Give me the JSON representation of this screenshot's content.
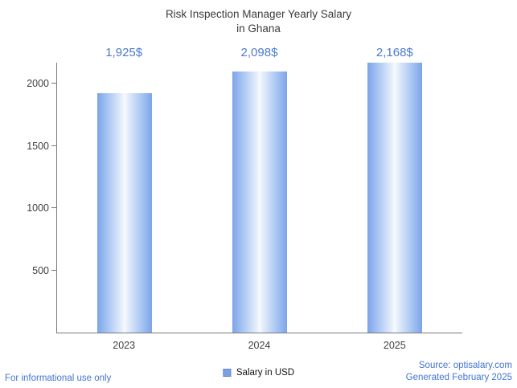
{
  "title": {
    "line1": "Risk Inspection Manager Yearly Salary",
    "line2": "in Ghana"
  },
  "chart_data": {
    "type": "bar",
    "title": "Risk Inspection Manager Yearly Salary in Ghana",
    "categories": [
      "2023",
      "2024",
      "2025"
    ],
    "values": [
      1925,
      2098,
      2168
    ],
    "value_labels": [
      "1,925$",
      "2,098$",
      "2,168$"
    ],
    "xlabel": "",
    "ylabel": "",
    "ylim": [
      0,
      2168
    ],
    "yticks": [
      500,
      1000,
      1500,
      2000
    ],
    "grid": false,
    "legend": {
      "label": "Salary in USD",
      "position": "bottom"
    },
    "bar_color": "#7da4e9",
    "value_label_color": "#4b7ad2"
  },
  "footer": {
    "left": "For informational use only",
    "source": "Source: optisalary.com",
    "generated": "Generated February 2025"
  },
  "colors": {
    "accent_blue": "#4b7ad2",
    "footer_blue": "#4374d4",
    "axis_gray": "#7a7a7a"
  }
}
